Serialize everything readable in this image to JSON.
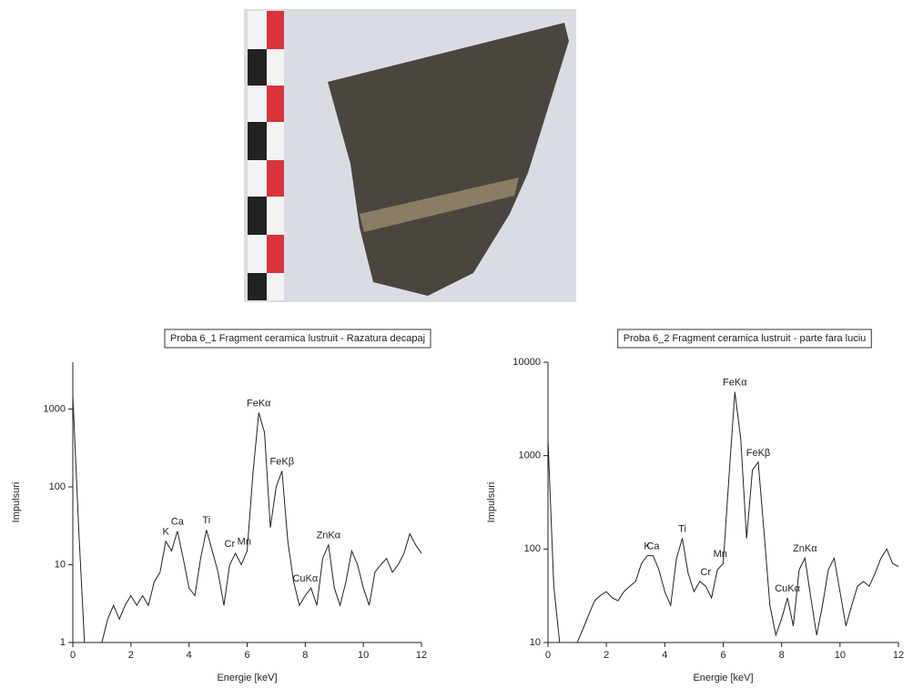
{
  "chart_data": [
    {
      "type": "line",
      "title": "Proba 6_1 Fragment ceramica lustruit - Razatura decapaj",
      "x_label": "Energie [keV]",
      "y_label": "Impulsuri",
      "log_y": true,
      "color": "#222222",
      "xlim": [
        0,
        12
      ],
      "xticks": [
        0,
        2,
        4,
        6,
        8,
        10,
        12
      ],
      "ylim": [
        1,
        4000
      ],
      "yticks": [
        1,
        10,
        100,
        1000
      ],
      "x": [
        0,
        0.2,
        0.4,
        0.6,
        0.8,
        1.0,
        1.2,
        1.4,
        1.6,
        1.8,
        2.0,
        2.2,
        2.4,
        2.6,
        2.8,
        3.0,
        3.2,
        3.4,
        3.6,
        3.8,
        4.0,
        4.2,
        4.4,
        4.6,
        4.8,
        5.0,
        5.2,
        5.4,
        5.6,
        5.8,
        6.0,
        6.2,
        6.4,
        6.6,
        6.8,
        7.0,
        7.2,
        7.4,
        7.6,
        7.8,
        8.0,
        8.2,
        8.4,
        8.6,
        8.8,
        9.0,
        9.2,
        9.4,
        9.6,
        9.8,
        10.0,
        10.2,
        10.4,
        10.6,
        10.8,
        11.0,
        11.2,
        11.4,
        11.6,
        11.8,
        12.0
      ],
      "values": [
        1500,
        30,
        1,
        1,
        1,
        1,
        2,
        3,
        2,
        3,
        4,
        3,
        4,
        3,
        6,
        8,
        20,
        15,
        27,
        12,
        5,
        4,
        12,
        28,
        15,
        8,
        3,
        10,
        14,
        10,
        15,
        150,
        900,
        500,
        30,
        100,
        160,
        20,
        6,
        3,
        4,
        5,
        3,
        12,
        18,
        5,
        3,
        6,
        15,
        10,
        5,
        3,
        8,
        10,
        12,
        8,
        10,
        14,
        25,
        18,
        14
      ],
      "annotations": [
        {
          "text": "K",
          "x": 3.2
        },
        {
          "text": "Ca",
          "x": 3.6
        },
        {
          "text": "Ti",
          "x": 4.6
        },
        {
          "text": "Cr",
          "x": 5.4
        },
        {
          "text": "Mn",
          "x": 5.9
        },
        {
          "text": "FeKα",
          "x": 6.4
        },
        {
          "text": "FeKβ",
          "x": 7.2
        },
        {
          "text": "CuKα",
          "x": 8.0
        },
        {
          "text": "ZnKα",
          "x": 8.8
        }
      ]
    },
    {
      "type": "line",
      "title": "Proba 6_2 Fragment ceramica lustruit - parte fara luciu",
      "x_label": "Energie [keV]",
      "y_label": "Impulsuri",
      "log_y": true,
      "color": "#222222",
      "xlim": [
        0,
        12
      ],
      "xticks": [
        0,
        2,
        4,
        6,
        8,
        10,
        12
      ],
      "ylim": [
        10,
        10000
      ],
      "yticks": [
        10,
        100,
        1000,
        10000
      ],
      "x": [
        0,
        0.2,
        0.4,
        0.6,
        0.8,
        1.0,
        1.2,
        1.4,
        1.6,
        1.8,
        2.0,
        2.2,
        2.4,
        2.6,
        2.8,
        3.0,
        3.2,
        3.4,
        3.6,
        3.8,
        4.0,
        4.2,
        4.4,
        4.6,
        4.8,
        5.0,
        5.2,
        5.4,
        5.6,
        5.8,
        6.0,
        6.2,
        6.4,
        6.6,
        6.8,
        7.0,
        7.2,
        7.4,
        7.6,
        7.8,
        8.0,
        8.2,
        8.4,
        8.6,
        8.8,
        9.0,
        9.2,
        9.4,
        9.6,
        9.8,
        10.0,
        10.2,
        10.4,
        10.6,
        10.8,
        11.0,
        11.2,
        11.4,
        11.6,
        11.8,
        12.0
      ],
      "values": [
        1500,
        40,
        10,
        10,
        10,
        10,
        14,
        20,
        28,
        32,
        35,
        30,
        28,
        35,
        40,
        45,
        70,
        85,
        85,
        60,
        35,
        25,
        80,
        130,
        55,
        35,
        45,
        40,
        30,
        60,
        70,
        600,
        4800,
        1500,
        130,
        700,
        850,
        150,
        25,
        12,
        18,
        30,
        15,
        60,
        80,
        30,
        12,
        25,
        60,
        80,
        35,
        15,
        25,
        40,
        45,
        40,
        55,
        80,
        100,
        70,
        65
      ],
      "annotations": [
        {
          "text": "K",
          "x": 3.4
        },
        {
          "text": "Ca",
          "x": 3.6
        },
        {
          "text": "Ti",
          "x": 4.6
        },
        {
          "text": "Cr",
          "x": 5.4
        },
        {
          "text": "Mn",
          "x": 5.9
        },
        {
          "text": "FeKα",
          "x": 6.4
        },
        {
          "text": "FeKβ",
          "x": 7.2
        },
        {
          "text": "CuKα",
          "x": 8.2
        },
        {
          "text": "ZnKα",
          "x": 8.8
        }
      ]
    }
  ]
}
